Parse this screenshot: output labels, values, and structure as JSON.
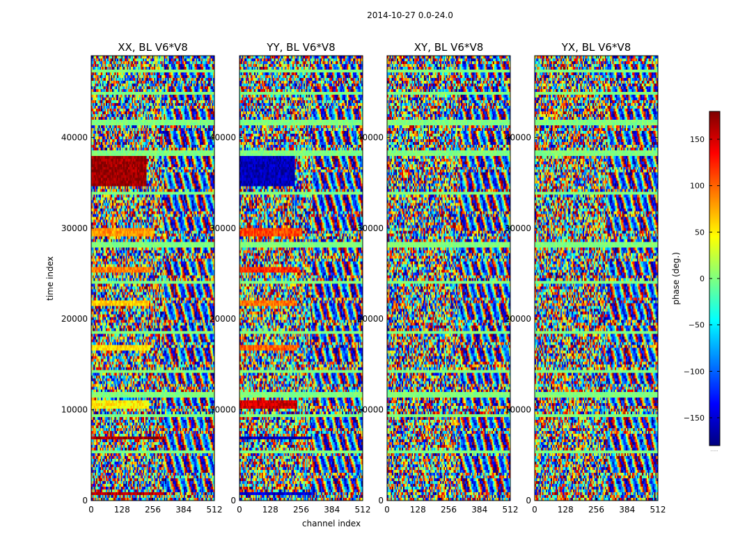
{
  "chart_data": {
    "type": "heatmap",
    "suptitle": "2014-10-27 0.0-24.0",
    "xlabel": "channel index",
    "ylabel": "time index",
    "x_ticks": [
      0,
      128,
      256,
      384,
      512
    ],
    "y_ticks": [
      0,
      10000,
      20000,
      30000,
      40000
    ],
    "xlim": [
      0,
      512
    ],
    "ylim": [
      0,
      49000
    ],
    "colorbar": {
      "label": "phase (deg.)",
      "ticks": [
        -150,
        -100,
        -50,
        0,
        50,
        100,
        150
      ],
      "range": [
        -180,
        180
      ],
      "colormap": "jet",
      "colors": [
        "#00007f",
        "#0000ff",
        "#007fff",
        "#00ffff",
        "#7fff7f",
        "#ffff00",
        "#ff7f00",
        "#ff0000",
        "#7f0000"
      ],
      "below_note": "......"
    },
    "panels": [
      {
        "title": "XX, BL V6*V8",
        "pol": "XX"
      },
      {
        "title": "YY, BL V6*V8",
        "pol": "YY"
      },
      {
        "title": "XY, BL V6*V8",
        "pol": "XY"
      },
      {
        "title": "YX, BL V6*V8",
        "pol": "YX"
      }
    ],
    "bands": [
      {
        "t0": 34500,
        "t1": 38000,
        "phase_XX": 170,
        "phase_YY": -160,
        "channel_end": 230
      },
      {
        "t0": 29200,
        "t1": 30000,
        "phase_XX": 80,
        "phase_YY": 110,
        "channel_end": 260
      },
      {
        "t0": 25000,
        "t1": 25800,
        "phase_XX": 90,
        "phase_YY": 120,
        "channel_end": 250
      },
      {
        "t0": 21400,
        "t1": 22200,
        "phase_XX": 60,
        "phase_YY": 95,
        "channel_end": 240
      },
      {
        "t0": 16600,
        "t1": 17200,
        "phase_XX": 55,
        "phase_YY": 100,
        "channel_end": 240
      },
      {
        "t0": 10200,
        "t1": 11000,
        "phase_XX": 50,
        "phase_YY": 150,
        "channel_end": 240
      },
      {
        "t0": 6600,
        "t1": 7000,
        "phase_XX": 165,
        "phase_YY": -160,
        "channel_end": 300
      },
      {
        "t0": 600,
        "t1": 1000,
        "phase_XX": 160,
        "phase_YY": -150,
        "channel_end": 300
      }
    ],
    "flag_rows": [
      47400,
      44800,
      41600,
      38300,
      33800,
      28200,
      24100,
      18500,
      14300,
      11600,
      9400,
      5300
    ]
  }
}
